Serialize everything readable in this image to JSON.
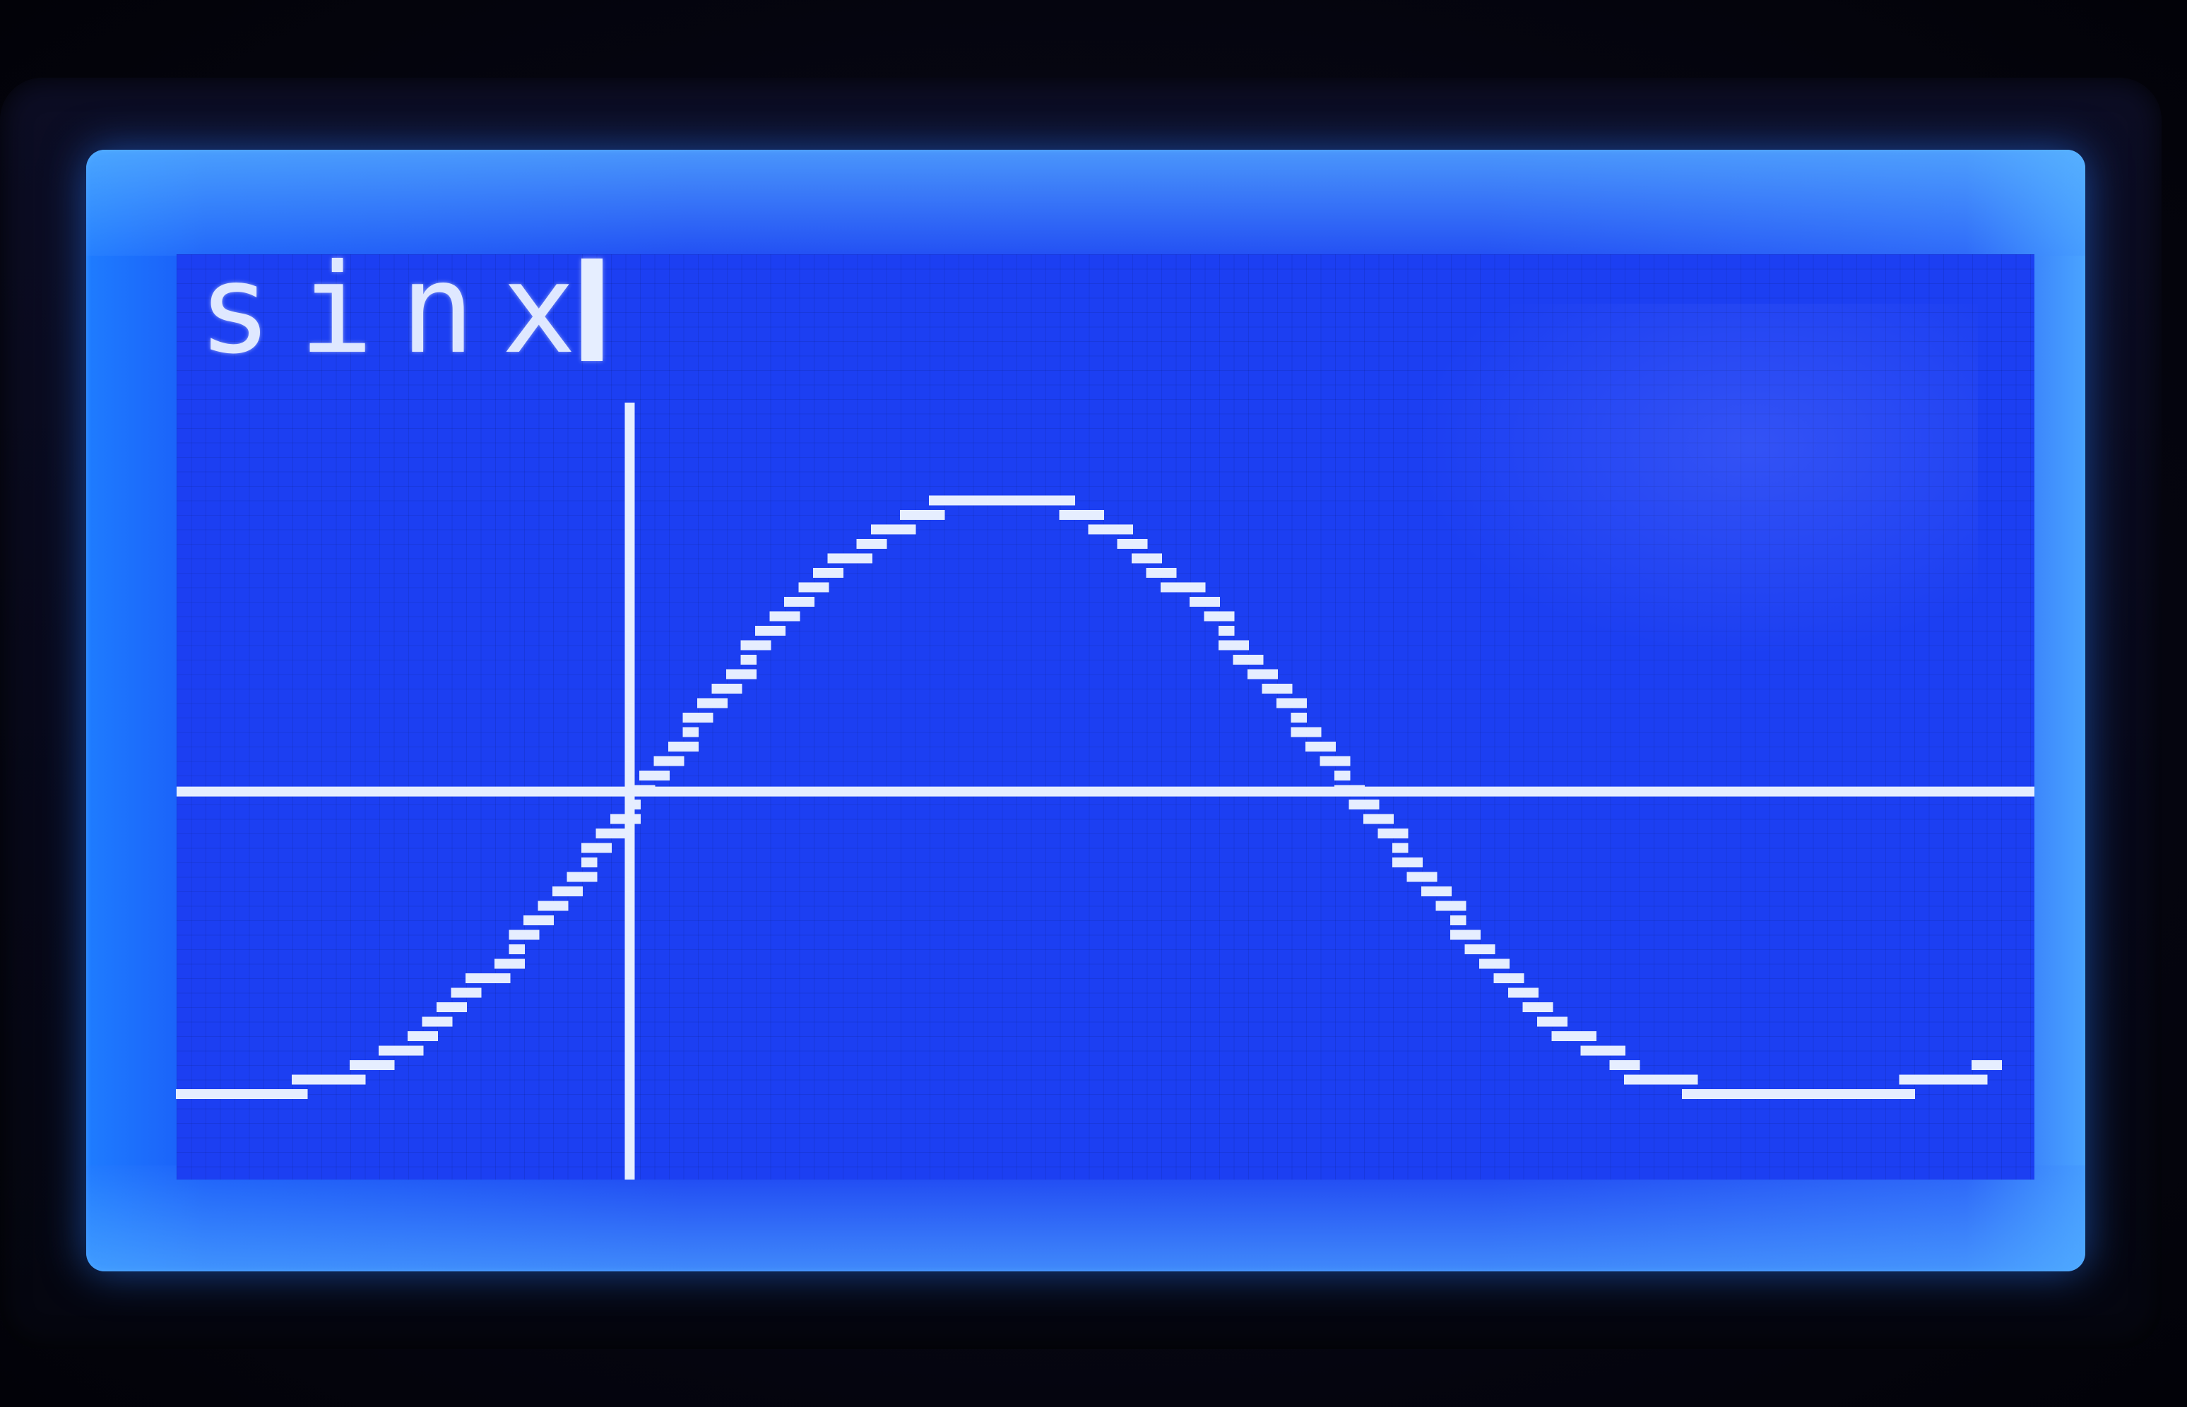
{
  "display": {
    "equation": "sinx"
  },
  "colors": {
    "backlight": "#1c3ff2",
    "pixel_on": "#e6eeff",
    "bezel": "#070818"
  },
  "chart_data": {
    "type": "line",
    "function": "sinx",
    "title": "sinx",
    "xlabel": "",
    "ylabel": "",
    "xlim": [
      -2.0,
      6.2
    ],
    "ylim": [
      -1.3,
      1.8
    ],
    "grid": false,
    "legend": "none",
    "series": [
      {
        "x": [
          -2.0,
          -1.5708,
          -1.2,
          -0.9,
          -0.6,
          -0.3,
          0.0,
          0.3,
          0.6,
          0.9,
          1.2,
          1.5708,
          1.9,
          2.2,
          2.5,
          2.8,
          3.1416,
          3.5,
          3.8,
          4.1,
          4.4,
          4.7124,
          5.0,
          5.5,
          6.0
        ],
        "y": [
          -1.0,
          -1.0,
          -0.93,
          -0.78,
          -0.56,
          -0.3,
          0.0,
          0.3,
          0.56,
          0.78,
          0.93,
          1.0,
          0.95,
          0.81,
          0.6,
          0.33,
          0.0,
          -0.35,
          -0.61,
          -0.82,
          -0.95,
          -1.0,
          -1.0,
          -1.0,
          -0.93
        ]
      }
    ]
  }
}
